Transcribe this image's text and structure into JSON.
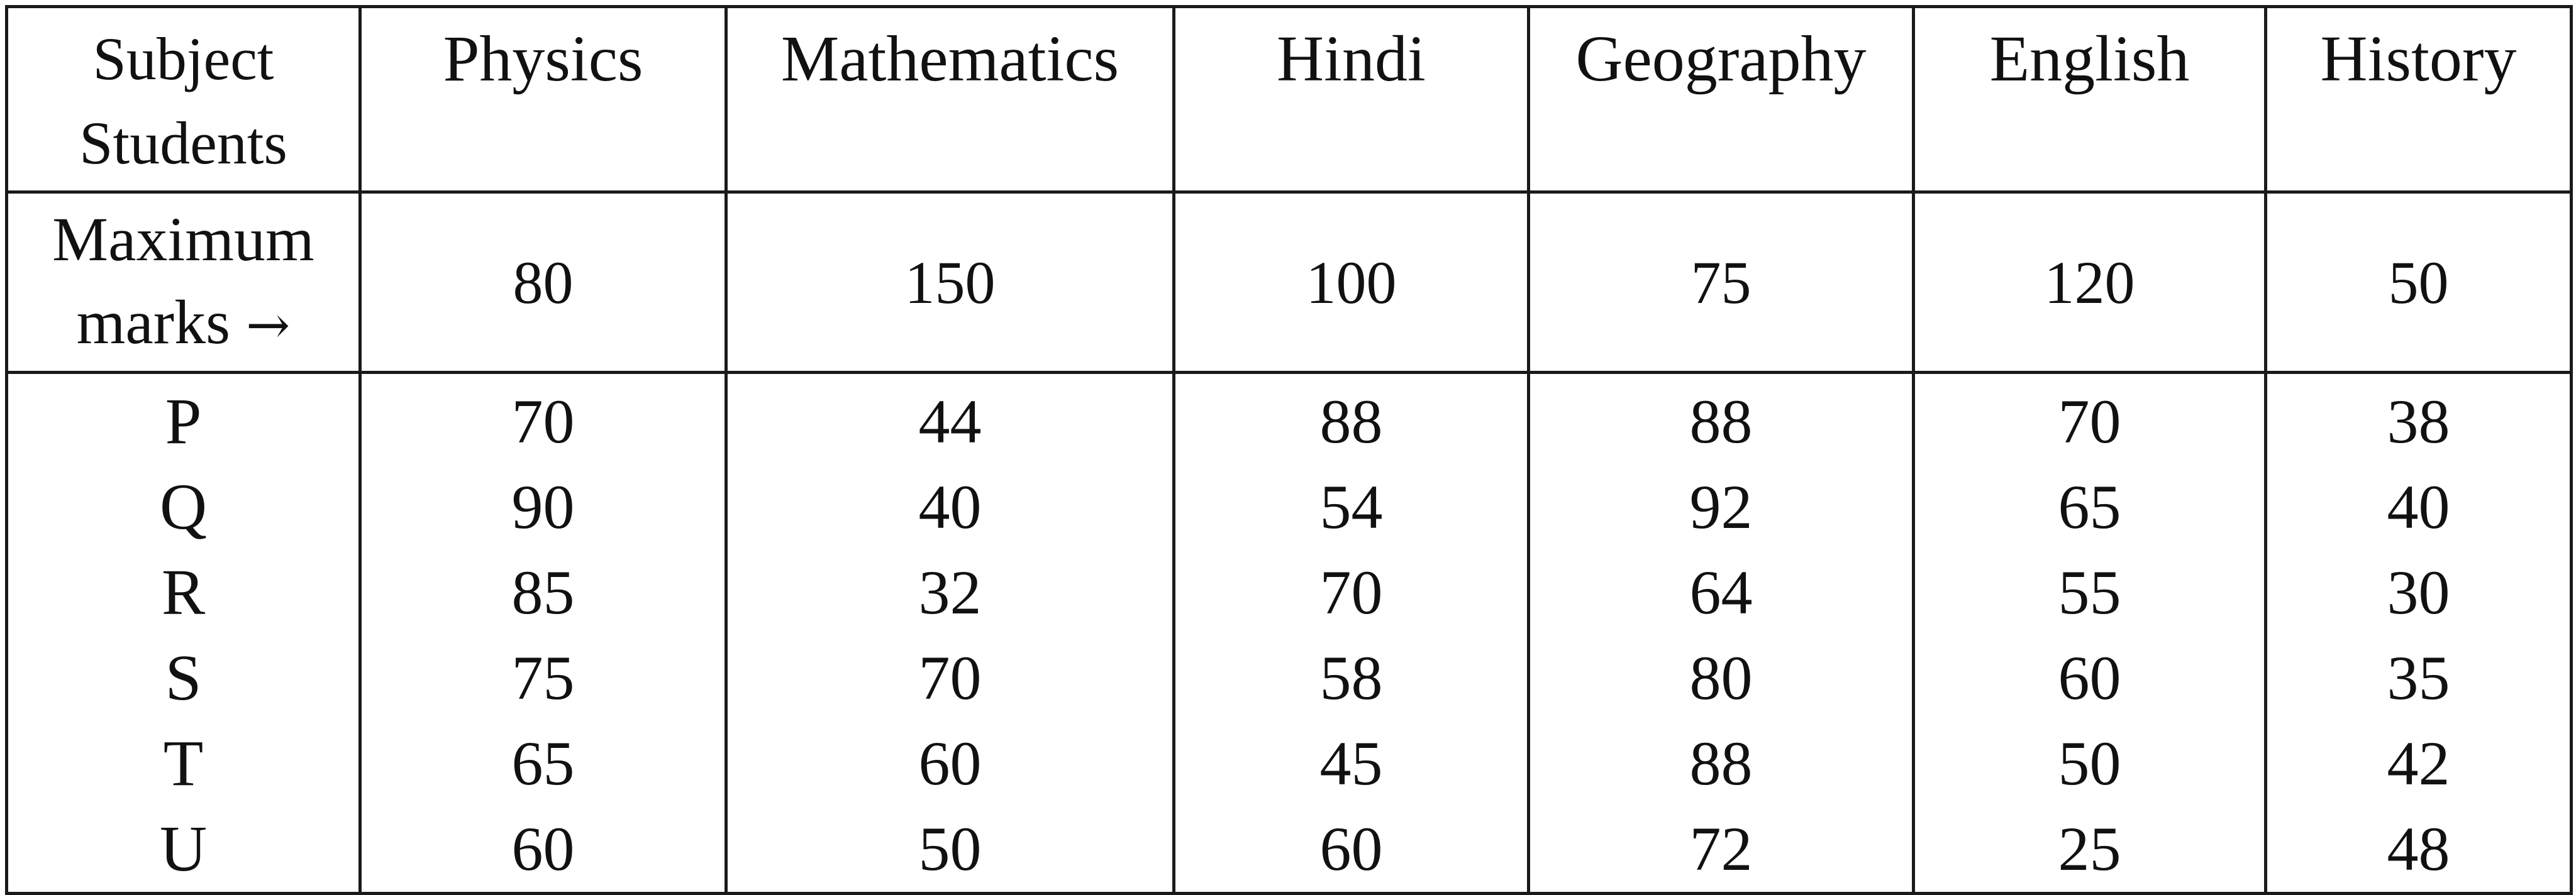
{
  "table": {
    "corner": {
      "line1": "Subject",
      "line2": "Students"
    },
    "subjects": [
      "Physics",
      "Mathematics",
      "Hindi",
      "Geography",
      "English",
      "History"
    ],
    "max_row": {
      "label_line1": "Maximum",
      "label_line2": "marks",
      "arrow": "→",
      "values": [
        "80",
        "150",
        "100",
        "75",
        "120",
        "50"
      ]
    },
    "students": [
      "P",
      "Q",
      "R",
      "S",
      "T",
      "U"
    ],
    "columns": [
      [
        "70",
        "90",
        "85",
        "75",
        "65",
        "60"
      ],
      [
        "44",
        "40",
        "32",
        "70",
        "60",
        "50"
      ],
      [
        "88",
        "54",
        "70",
        "58",
        "45",
        "60"
      ],
      [
        "88",
        "92",
        "64",
        "80",
        "88",
        "72"
      ],
      [
        "70",
        "65",
        "55",
        "60",
        "50",
        "25"
      ],
      [
        "38",
        "40",
        "30",
        "35",
        "42",
        "48"
      ]
    ]
  }
}
